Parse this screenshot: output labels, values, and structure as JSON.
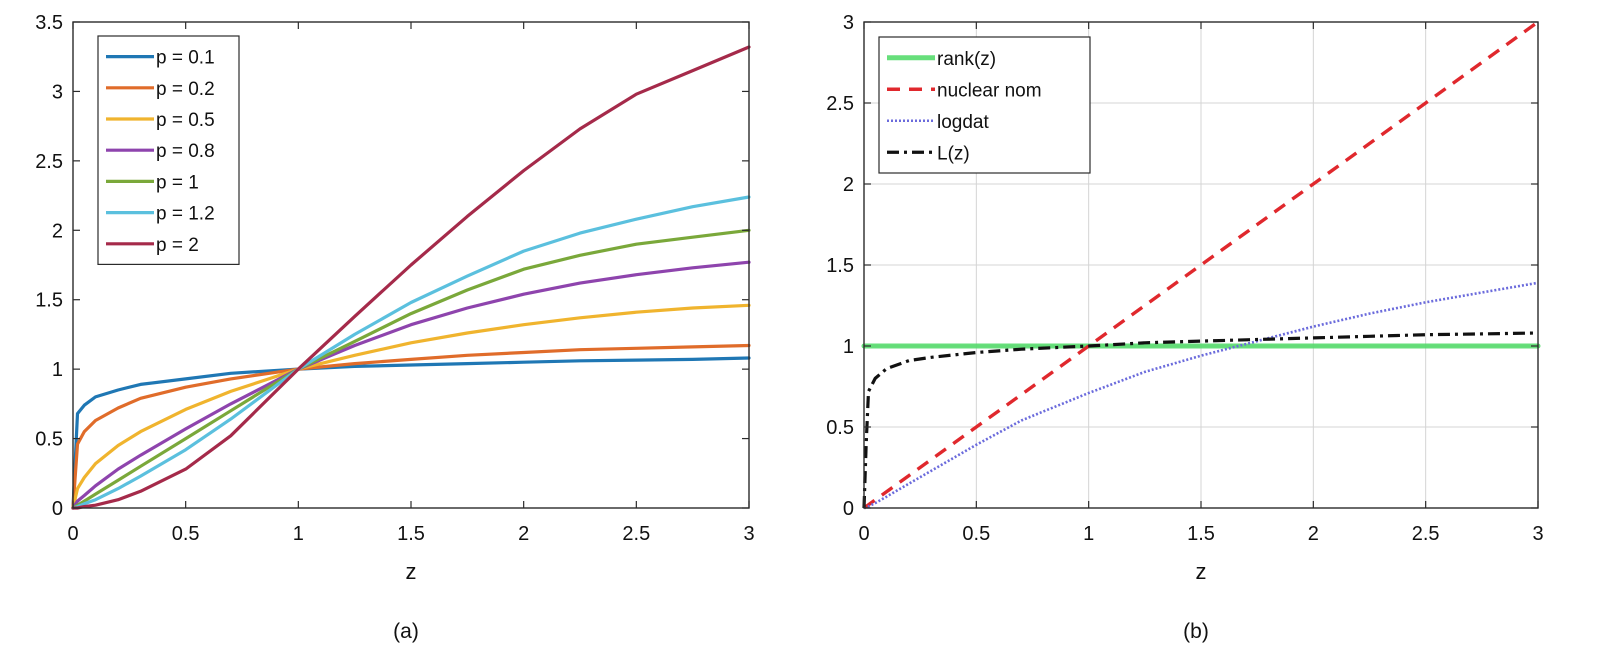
{
  "chart_data": [
    {
      "type": "line",
      "panel_label": "(a)",
      "title": "",
      "xlabel": "z",
      "ylabel": "",
      "xlim": [
        0,
        3
      ],
      "ylim": [
        0,
        3.5
      ],
      "grid": false,
      "legend_position": "top-left",
      "x_ticks": [
        0,
        0.5,
        1,
        1.5,
        2,
        2.5,
        3
      ],
      "x_tick_labels": [
        "0",
        "0.5",
        "1",
        "1.5",
        "2",
        "2.5",
        "3"
      ],
      "y_ticks": [
        0,
        0.5,
        1,
        1.5,
        2,
        2.5,
        3,
        3.5
      ],
      "y_tick_labels": [
        "0",
        "0.5",
        "1",
        "1.5",
        "2",
        "2.5",
        "3",
        "3.5"
      ],
      "x": [
        0,
        0.02,
        0.05,
        0.1,
        0.2,
        0.3,
        0.5,
        0.7,
        1,
        1.25,
        1.5,
        1.75,
        2,
        2.25,
        2.5,
        2.75,
        3
      ],
      "series": [
        {
          "name": "p = 0.1",
          "color": "#1f77b4",
          "style": "solid",
          "values": [
            0,
            0.68,
            0.74,
            0.8,
            0.85,
            0.89,
            0.93,
            0.97,
            1,
            1.02,
            1.03,
            1.04,
            1.05,
            1.06,
            1.065,
            1.07,
            1.08
          ]
        },
        {
          "name": "p = 0.2",
          "color": "#e06c2a",
          "style": "solid",
          "values": [
            0,
            0.46,
            0.55,
            0.63,
            0.72,
            0.79,
            0.87,
            0.93,
            1,
            1.04,
            1.07,
            1.1,
            1.12,
            1.14,
            1.15,
            1.16,
            1.17
          ]
        },
        {
          "name": "p = 0.5",
          "color": "#f0b42e",
          "style": "solid",
          "values": [
            0,
            0.14,
            0.22,
            0.32,
            0.45,
            0.55,
            0.71,
            0.84,
            1,
            1.1,
            1.19,
            1.26,
            1.32,
            1.37,
            1.41,
            1.44,
            1.46
          ]
        },
        {
          "name": "p = 0.8",
          "color": "#8e44ad",
          "style": "solid",
          "values": [
            0,
            0.05,
            0.09,
            0.16,
            0.28,
            0.38,
            0.57,
            0.75,
            1,
            1.17,
            1.32,
            1.44,
            1.54,
            1.62,
            1.68,
            1.73,
            1.77
          ]
        },
        {
          "name": "p = 1",
          "color": "#7aa83a",
          "style": "solid",
          "values": [
            0,
            0.02,
            0.05,
            0.1,
            0.2,
            0.3,
            0.5,
            0.7,
            1,
            1.2,
            1.4,
            1.57,
            1.72,
            1.82,
            1.9,
            1.95,
            2
          ]
        },
        {
          "name": "p = 1.2",
          "color": "#5bc0de",
          "style": "solid",
          "values": [
            0,
            0.01,
            0.03,
            0.06,
            0.14,
            0.23,
            0.42,
            0.64,
            1,
            1.25,
            1.48,
            1.67,
            1.85,
            1.98,
            2.08,
            2.17,
            2.24
          ]
        },
        {
          "name": "p = 2",
          "color": "#a52a4a",
          "style": "solid",
          "values": [
            0,
            0.0,
            0.01,
            0.02,
            0.06,
            0.12,
            0.28,
            0.52,
            1,
            1.38,
            1.75,
            2.1,
            2.43,
            2.73,
            2.98,
            3.15,
            3.32
          ]
        }
      ]
    },
    {
      "type": "line",
      "panel_label": "(b)",
      "title": "",
      "xlabel": "z",
      "ylabel": "",
      "xlim": [
        0,
        3
      ],
      "ylim": [
        0,
        3
      ],
      "grid": true,
      "legend_position": "top-left",
      "x_ticks": [
        0,
        0.5,
        1,
        1.5,
        2,
        2.5,
        3
      ],
      "x_tick_labels": [
        "0",
        "0.5",
        "1",
        "1.5",
        "2",
        "2.5",
        "3"
      ],
      "y_ticks": [
        0,
        0.5,
        1,
        1.5,
        2,
        2.5,
        3
      ],
      "y_tick_labels": [
        "0",
        "0.5",
        "1",
        "1.5",
        "2",
        "2.5",
        "3"
      ],
      "x": [
        0,
        0.01,
        0.02,
        0.05,
        0.1,
        0.2,
        0.3,
        0.5,
        0.7,
        1,
        1.25,
        1.5,
        1.75,
        2,
        2.25,
        2.5,
        2.75,
        3
      ],
      "series": [
        {
          "name": "rank(z)",
          "color": "#4cd964",
          "style": "solid-thick",
          "values": [
            1,
            1,
            1,
            1,
            1,
            1,
            1,
            1,
            1,
            1,
            1,
            1,
            1,
            1,
            1,
            1,
            1,
            1
          ]
        },
        {
          "name": "nuclear nom",
          "color": "#e0282d",
          "style": "dashed",
          "values": [
            0,
            0.01,
            0.02,
            0.05,
            0.1,
            0.2,
            0.3,
            0.5,
            0.7,
            1,
            1.25,
            1.5,
            1.75,
            2,
            2.25,
            2.5,
            2.75,
            3
          ]
        },
        {
          "name": "logdat",
          "color": "#6b6bdc",
          "style": "dotted",
          "values": [
            0,
            0.005,
            0.01,
            0.03,
            0.07,
            0.15,
            0.23,
            0.39,
            0.54,
            0.71,
            0.84,
            0.94,
            1.03,
            1.12,
            1.2,
            1.27,
            1.33,
            1.39
          ]
        },
        {
          "name": "L(z)",
          "color": "#111111",
          "style": "dashdot",
          "values": [
            0,
            0.4,
            0.72,
            0.8,
            0.86,
            0.91,
            0.93,
            0.96,
            0.98,
            1,
            1.02,
            1.03,
            1.04,
            1.05,
            1.06,
            1.07,
            1.075,
            1.08
          ]
        }
      ]
    }
  ]
}
